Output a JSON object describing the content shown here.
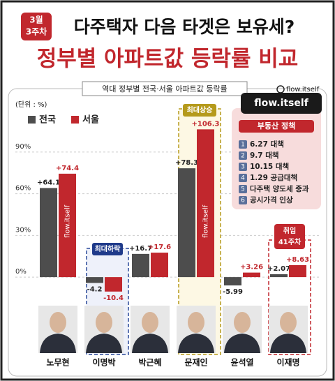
{
  "badge": [
    "3월",
    "3주차"
  ],
  "brand": "flow.itself",
  "chart_data": {
    "type": "bar",
    "title": "다주택자 다음 타겟은 보유세?",
    "subtitle": "정부별 아파트값 등락률 비교",
    "caption": "역대 정부별 전국·서울 아파트값 등락률",
    "unit": "(단위 : %)",
    "categories": [
      "노무현",
      "이명박",
      "박근혜",
      "문재인",
      "윤석열",
      "이재명"
    ],
    "series": [
      {
        "name": "전국",
        "color": "#4d4d4d",
        "values": [
          64.1,
          -4.2,
          16.7,
          78.3,
          -5.99,
          2.07
        ],
        "value_labels": [
          "+64.1",
          "-4.2",
          "+16.7",
          "+78.3",
          "-5.99",
          "+2.07"
        ]
      },
      {
        "name": "서울",
        "color": "#c1272d",
        "values": [
          74.4,
          -10.4,
          17.6,
          106.3,
          3.26,
          8.63
        ],
        "value_labels": [
          "+74.4",
          "-10.4",
          "+17.6",
          "+106.3",
          "+3.26",
          "+8.63"
        ]
      }
    ],
    "ylim": [
      -14,
      110
    ],
    "yticks": [
      {
        "value": 0,
        "label": "0%"
      },
      {
        "value": 30,
        "label": "30%"
      },
      {
        "value": 60,
        "label": "60%"
      },
      {
        "value": 90,
        "label": "90%"
      }
    ],
    "grid": true,
    "legend": "upper left",
    "annotations": {
      "max_fall": "최대하락",
      "max_rise": "최대상승",
      "inauguration": [
        "취임",
        "41주차"
      ]
    }
  },
  "policy_box": {
    "title": "부동산 정책",
    "items": [
      {
        "num": 1,
        "text": "6.27 대책"
      },
      {
        "num": 2,
        "text": "9.7 대책"
      },
      {
        "num": 3,
        "text": "10.15 대책"
      },
      {
        "num": 4,
        "text": "1.29 공급대책"
      },
      {
        "num": 5,
        "text": "다주택 양도세 중과"
      },
      {
        "num": 6,
        "text": "공시가격 인상"
      }
    ]
  }
}
